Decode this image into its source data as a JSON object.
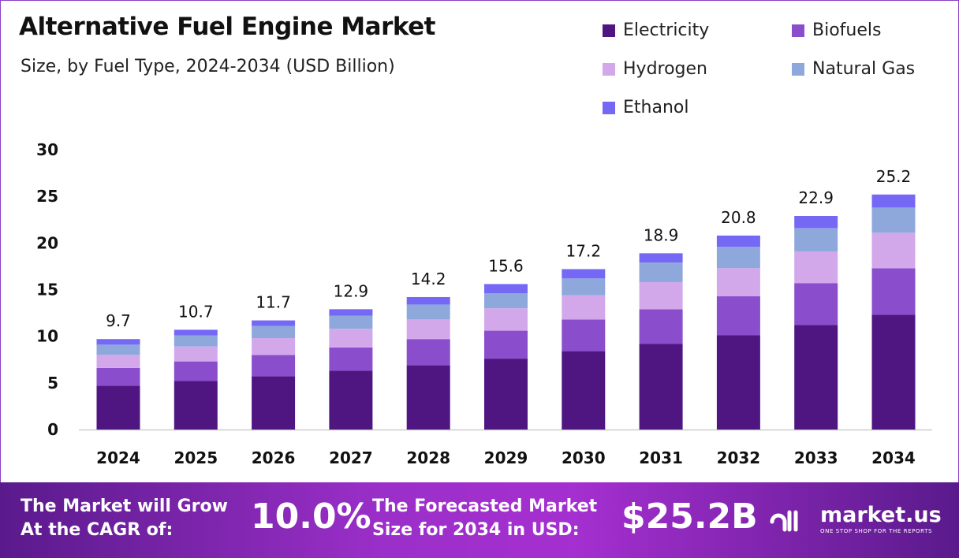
{
  "chart_data": {
    "type": "bar",
    "stacked": true,
    "title": "Alternative Fuel Engine Market",
    "subtitle": "Size, by Fuel Type, 2024-2034 (USD Billion)",
    "categories": [
      "2024",
      "2025",
      "2026",
      "2027",
      "2028",
      "2029",
      "2030",
      "2031",
      "2032",
      "2033",
      "2034"
    ],
    "series": [
      {
        "name": "Electricity",
        "color": "#4f1681",
        "values": [
          4.7,
          5.2,
          5.7,
          6.3,
          6.9,
          7.6,
          8.4,
          9.2,
          10.1,
          11.2,
          12.3
        ]
      },
      {
        "name": "Biofuels",
        "color": "#8a4dcb",
        "values": [
          1.9,
          2.1,
          2.3,
          2.5,
          2.8,
          3.0,
          3.4,
          3.7,
          4.2,
          4.5,
          5.0
        ]
      },
      {
        "name": "Hydrogen",
        "color": "#d3a8eb",
        "values": [
          1.4,
          1.6,
          1.8,
          2.0,
          2.1,
          2.4,
          2.6,
          2.9,
          3.0,
          3.4,
          3.8
        ]
      },
      {
        "name": "Natural Gas",
        "color": "#8fa8dc",
        "values": [
          1.1,
          1.2,
          1.3,
          1.4,
          1.6,
          1.6,
          1.8,
          2.1,
          2.3,
          2.5,
          2.7
        ]
      },
      {
        "name": "Ethanol",
        "color": "#7468f5",
        "values": [
          0.6,
          0.6,
          0.6,
          0.7,
          0.8,
          1.0,
          1.0,
          1.0,
          1.2,
          1.3,
          1.4
        ]
      }
    ],
    "totals": [
      "9.7",
      "10.7",
      "11.7",
      "12.9",
      "14.2",
      "15.6",
      "17.2",
      "18.9",
      "20.8",
      "22.9",
      "25.2"
    ],
    "yticks": [
      "0",
      "5",
      "10",
      "15",
      "20",
      "25",
      "30"
    ],
    "ylim": [
      0,
      30
    ],
    "grid": false,
    "legend": "top-right"
  },
  "footer": {
    "cagr_label_1": "The Market will Grow",
    "cagr_label_2": "At the CAGR of:",
    "cagr_value": "10.0%",
    "forecast_label_1": "The Forecasted Market",
    "forecast_label_2": "Size for 2034 in USD:",
    "forecast_value": "$25.2B",
    "brand": "market.us",
    "tagline": "ONE STOP SHOP FOR THE REPORTS"
  }
}
